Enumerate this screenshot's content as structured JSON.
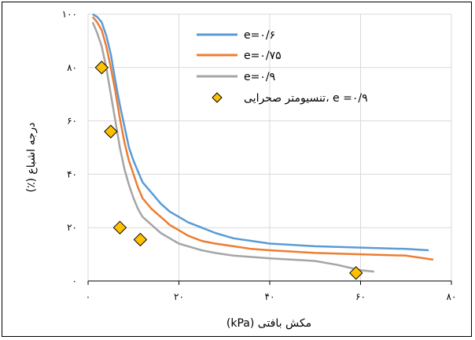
{
  "chart_data": {
    "type": "line",
    "xlabel": "مکش بافتی (kPa)",
    "ylabel": "درجه اشباع (٪)",
    "xlim": [
      0,
      80
    ],
    "ylim": [
      0,
      100
    ],
    "x_ticks": [
      {
        "value": 0,
        "label": "۰"
      },
      {
        "value": 20,
        "label": "۲۰"
      },
      {
        "value": 40,
        "label": "۴۰"
      },
      {
        "value": 60,
        "label": "۶۰"
      },
      {
        "value": 80,
        "label": "۸۰"
      }
    ],
    "y_ticks": [
      {
        "value": 0,
        "label": "۰"
      },
      {
        "value": 20,
        "label": "۲۰"
      },
      {
        "value": 40,
        "label": "۴۰"
      },
      {
        "value": 60,
        "label": "۶۰"
      },
      {
        "value": 80,
        "label": "۸۰"
      },
      {
        "value": 100,
        "label": "۱۰۰"
      }
    ],
    "grid": true,
    "legend_position": "top-right",
    "series": [
      {
        "name": "e=۰/۶",
        "color": "#5b9bd5",
        "kind": "line",
        "points": [
          [
            1,
            100
          ],
          [
            2,
            99
          ],
          [
            3,
            97
          ],
          [
            4,
            92
          ],
          [
            5,
            85
          ],
          [
            6,
            75
          ],
          [
            7,
            66
          ],
          [
            8,
            58
          ],
          [
            9,
            50
          ],
          [
            10,
            45
          ],
          [
            11,
            41
          ],
          [
            12,
            37
          ],
          [
            14,
            33
          ],
          [
            16,
            29
          ],
          [
            18,
            26
          ],
          [
            20,
            24
          ],
          [
            22,
            22
          ],
          [
            25,
            20
          ],
          [
            28,
            18
          ],
          [
            32,
            16
          ],
          [
            36,
            15
          ],
          [
            40,
            14
          ],
          [
            50,
            13
          ],
          [
            60,
            12.5
          ],
          [
            70,
            12
          ],
          [
            75,
            11.5
          ]
        ]
      },
      {
        "name": "e=۰/۷۵",
        "color": "#ed7d31",
        "kind": "line",
        "points": [
          [
            1,
            99
          ],
          [
            2,
            97
          ],
          [
            3,
            94
          ],
          [
            4,
            88
          ],
          [
            5,
            80
          ],
          [
            6,
            71
          ],
          [
            7,
            61
          ],
          [
            8,
            52
          ],
          [
            9,
            45
          ],
          [
            10,
            40
          ],
          [
            11,
            35
          ],
          [
            12,
            31
          ],
          [
            14,
            27
          ],
          [
            16,
            24
          ],
          [
            18,
            21
          ],
          [
            20,
            19
          ],
          [
            22,
            17
          ],
          [
            25,
            15
          ],
          [
            28,
            14
          ],
          [
            32,
            13
          ],
          [
            36,
            12
          ],
          [
            40,
            11.5
          ],
          [
            50,
            10.5
          ],
          [
            60,
            10
          ],
          [
            70,
            9.5
          ],
          [
            76,
            8
          ]
        ]
      },
      {
        "name": "e=۰/۹",
        "color": "#a5a5a5",
        "kind": "line",
        "points": [
          [
            1,
            97
          ],
          [
            2,
            93
          ],
          [
            3,
            88
          ],
          [
            4,
            80
          ],
          [
            5,
            70
          ],
          [
            6,
            60
          ],
          [
            7,
            50
          ],
          [
            8,
            42
          ],
          [
            9,
            36
          ],
          [
            10,
            31
          ],
          [
            11,
            27
          ],
          [
            12,
            24
          ],
          [
            14,
            21
          ],
          [
            16,
            18
          ],
          [
            18,
            16
          ],
          [
            20,
            14
          ],
          [
            22,
            13
          ],
          [
            25,
            11.5
          ],
          [
            28,
            10.5
          ],
          [
            32,
            9.5
          ],
          [
            36,
            9
          ],
          [
            40,
            8.5
          ],
          [
            50,
            7.5
          ],
          [
            55,
            6
          ],
          [
            60,
            4
          ],
          [
            63,
            3.5
          ]
        ]
      },
      {
        "name": "تنسیومتر صحرایی، e =۰/۹",
        "color": "#ffc000",
        "kind": "marker",
        "points": [
          [
            3,
            80
          ],
          [
            5,
            56
          ],
          [
            7,
            20
          ],
          [
            11.5,
            15.5
          ],
          [
            59,
            3
          ]
        ]
      }
    ]
  }
}
